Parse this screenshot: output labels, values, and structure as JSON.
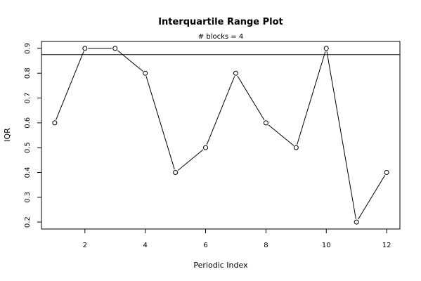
{
  "chart_data": {
    "type": "line",
    "title": "Interquartile Range Plot",
    "subtitle": "# blocks =  4",
    "xlabel": "Periodic Index",
    "ylabel": "IQR",
    "x": [
      1,
      2,
      3,
      4,
      5,
      6,
      7,
      8,
      9,
      10,
      11,
      12
    ],
    "values": [
      0.6,
      0.9,
      0.9,
      0.8,
      0.4,
      0.5,
      0.8,
      0.6,
      0.5,
      0.9,
      0.2,
      0.4
    ],
    "reference_line": 0.875,
    "xlim": [
      0.56,
      12.44
    ],
    "ylim": [
      0.172,
      0.928
    ],
    "x_ticks": [
      2,
      4,
      6,
      8,
      10,
      12
    ],
    "x_tick_labels": [
      "2",
      "4",
      "6",
      "8",
      "10",
      "12"
    ],
    "y_ticks": [
      0.2,
      0.3,
      0.4,
      0.5,
      0.6,
      0.7,
      0.8,
      0.9
    ],
    "y_tick_labels": [
      "0.2",
      "0.3",
      "0.4",
      "0.5",
      "0.6",
      "0.7",
      "0.8",
      "0.9"
    ],
    "marker": "open-circle",
    "grid": false,
    "colors": {
      "line": "#000000",
      "marker": "#000000",
      "background": "#ffffff"
    }
  }
}
